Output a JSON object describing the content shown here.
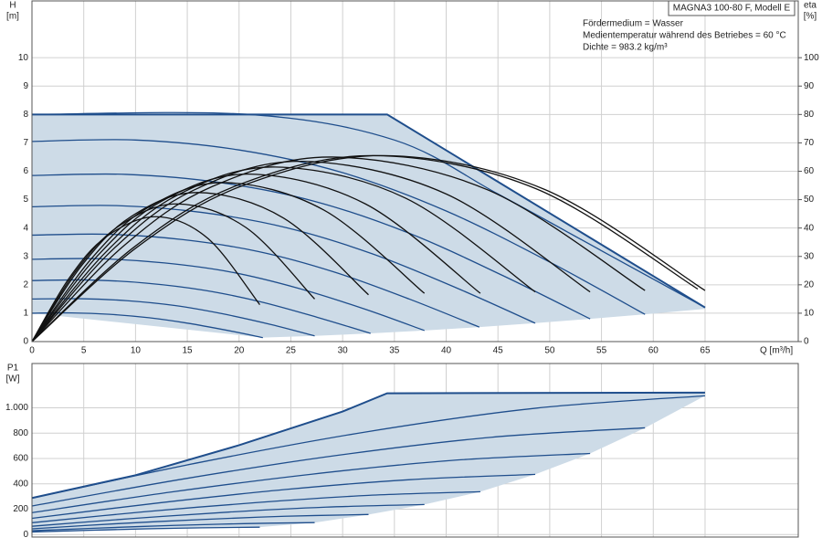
{
  "chart_data": [
    {
      "type": "line",
      "title": "MAGNA3 100-80 F, Modell E",
      "annotations": [
        "Fördermedium = Wasser",
        "Medientemperatur während des Betriebes = 60 °C",
        "Dichte = 983.2 kg/m³"
      ],
      "xlabel": "Q [m³/h]",
      "ylabel": "H",
      "yunit": "[m]",
      "y2label": "eta",
      "y2unit": "[%]",
      "xlim": [
        0,
        74
      ],
      "ylim": [
        0,
        12
      ],
      "y2lim": [
        0,
        120
      ],
      "xticks": [
        0,
        5,
        10,
        15,
        20,
        25,
        30,
        35,
        40,
        45,
        50,
        55,
        60,
        65
      ],
      "yticks": [
        0,
        1,
        2,
        3,
        4,
        5,
        6,
        7,
        8,
        9,
        10
      ],
      "y2ticks": [
        0,
        10,
        20,
        30,
        40,
        50,
        60,
        70,
        80,
        90,
        100
      ],
      "grid": true,
      "area": {
        "color": "#cddbe7",
        "x": [
          0,
          34.3,
          65,
          65,
          59.2,
          53.9,
          48.6,
          43.2,
          37.9,
          32.7,
          27.3,
          22.3,
          0
        ],
        "values": [
          8,
          8,
          1.2,
          1.15,
          0.96,
          0.8,
          0.65,
          0.51,
          0.39,
          0.29,
          0.2,
          0.14,
          1.0
        ]
      },
      "series": [
        {
          "color": "#1f4e8c",
          "line_width": 2,
          "x": [
            0,
            34.3,
            65
          ],
          "values": [
            8,
            8,
            1.2
          ]
        },
        {
          "color": "#1f4e8c",
          "x": [
            0,
            21,
            35,
            45,
            55,
            65
          ],
          "values": [
            8,
            8,
            7.1,
            5.2,
            3.2,
            1.2
          ]
        },
        {
          "color": "#1f4e8c",
          "x": [
            0,
            10,
            20,
            30,
            40,
            50,
            59.2
          ],
          "values": [
            7.05,
            7.1,
            6.75,
            5.95,
            4.6,
            2.8,
            0.96
          ]
        },
        {
          "color": "#1f4e8c",
          "x": [
            0,
            9.1,
            18.2,
            27.3,
            36.4,
            45.5,
            53.9
          ],
          "values": [
            5.85,
            5.89,
            5.6,
            4.94,
            3.82,
            2.32,
            0.8
          ]
        },
        {
          "color": "#1f4e8c",
          "x": [
            0,
            8.2,
            16.4,
            24.6,
            32.8,
            41.0,
            48.6
          ],
          "values": [
            4.75,
            4.79,
            4.55,
            4.01,
            3.1,
            1.89,
            0.65
          ]
        },
        {
          "color": "#1f4e8c",
          "x": [
            0,
            7.3,
            14.6,
            21.9,
            29.2,
            36.5,
            43.2
          ],
          "values": [
            3.75,
            3.78,
            3.59,
            3.17,
            2.45,
            1.49,
            0.51
          ]
        },
        {
          "color": "#1f4e8c",
          "x": [
            0,
            6.4,
            12.8,
            19.2,
            25.6,
            32.1,
            37.9
          ],
          "values": [
            2.9,
            2.92,
            2.77,
            2.45,
            1.89,
            1.15,
            0.39
          ]
        },
        {
          "color": "#1f4e8c",
          "x": [
            0,
            5.5,
            11.0,
            16.6,
            22.1,
            27.6,
            32.7
          ],
          "values": [
            2.15,
            2.17,
            2.06,
            1.81,
            1.4,
            0.85,
            0.29
          ]
        },
        {
          "color": "#1f4e8c",
          "x": [
            0,
            4.6,
            9.2,
            13.8,
            18.4,
            23.1,
            27.3
          ],
          "values": [
            1.5,
            1.51,
            1.44,
            1.27,
            0.98,
            0.6,
            0.2
          ]
        },
        {
          "color": "#1f4e8c",
          "x": [
            0,
            3.8,
            7.5,
            11.3,
            15.0,
            18.8,
            22.3
          ],
          "values": [
            1.0,
            1.01,
            0.96,
            0.84,
            0.65,
            0.4,
            0.14
          ]
        },
        {
          "color": "#111111",
          "axis": "y2",
          "x": [
            0,
            3.6,
            7.2,
            12,
            17,
            22
          ],
          "values": [
            0,
            22.4,
            37.0,
            44,
            36.3,
            13
          ]
        },
        {
          "color": "#111111",
          "axis": "y2",
          "x": [
            0,
            4.2,
            8.4,
            14,
            20.7,
            27.3
          ],
          "values": [
            0,
            24.7,
            40.7,
            48.5,
            40.1,
            15
          ]
        },
        {
          "color": "#111111",
          "axis": "y2",
          "x": [
            0,
            4.8,
            9.6,
            16,
            24.3,
            32.5
          ],
          "values": [
            0,
            26.8,
            44.1,
            52.5,
            43.5,
            16.5
          ]
        },
        {
          "color": "#111111",
          "axis": "y2",
          "x": [
            0,
            5.6,
            11.1,
            18.5,
            28.2,
            37.9
          ],
          "values": [
            0,
            28.6,
            47.0,
            56,
            46.3,
            17
          ]
        },
        {
          "color": "#111111",
          "axis": "y2",
          "x": [
            0,
            6.3,
            12.6,
            21,
            32.2,
            43.3
          ],
          "values": [
            0,
            30.1,
            49.6,
            59,
            48.5,
            17
          ]
        },
        {
          "color": "#111111",
          "axis": "y2",
          "x": [
            0,
            7.1,
            14.1,
            23.5,
            36.1,
            48.6
          ],
          "values": [
            0,
            31.4,
            51.7,
            61.5,
            50.5,
            17.5
          ]
        },
        {
          "color": "#111111",
          "axis": "y2",
          "x": [
            0,
            7.8,
            15.6,
            26,
            40,
            53.9
          ],
          "values": [
            0,
            32.4,
            53.3,
            63.5,
            52.0,
            17.5
          ]
        },
        {
          "color": "#111111",
          "axis": "y2",
          "x": [
            0,
            8.7,
            17.4,
            29,
            44.1,
            59.2
          ],
          "values": [
            0,
            33.2,
            54.6,
            65,
            53.3,
            18
          ]
        },
        {
          "color": "#111111",
          "axis": "y2",
          "x": [
            0,
            9.9,
            19.8,
            33,
            48.7,
            64.3
          ],
          "values": [
            0,
            33.4,
            55.0,
            65.5,
            53.8,
            18.5
          ]
        },
        {
          "color": "#111111",
          "axis": "y2",
          "x": [
            0,
            10.2,
            20.4,
            34,
            49.5,
            65
          ],
          "values": [
            0,
            33.4,
            55.0,
            65.5,
            53.6,
            18
          ]
        }
      ]
    },
    {
      "type": "line",
      "ylabel": "P1",
      "yunit": "[W]",
      "xlim": [
        0,
        74
      ],
      "ylim": [
        -20,
        1350
      ],
      "yticks": [
        0,
        200,
        400,
        600,
        800,
        {
          "value": 1000,
          "label": "1.000"
        }
      ],
      "grid": true,
      "area": {
        "color": "#cddbe7",
        "x": [
          0,
          10,
          20,
          30,
          34.3,
          65,
          65,
          59.2,
          53.9,
          48.6,
          43.3,
          37.9,
          32.5,
          27.3,
          22,
          0
        ],
        "values": [
          288,
          468,
          705,
          971,
          1115,
          1120,
          1095,
          842,
          640,
          475,
          338,
          237,
          158,
          94,
          58,
          20
        ]
      },
      "series": [
        {
          "color": "#1f4e8c",
          "line_width": 2,
          "x": [
            0,
            10,
            20,
            30,
            34.3,
            65
          ],
          "values": [
            288,
            468,
            705,
            971,
            1115,
            1120
          ]
        },
        {
          "color": "#1f4e8c",
          "x": [
            0,
            16.25,
            32.5,
            48.75,
            65
          ],
          "values": [
            288,
            570,
            813,
            998,
            1095
          ]
        },
        {
          "color": "#1f4e8c",
          "x": [
            0,
            14.8,
            29.6,
            44.4,
            59.2
          ],
          "values": [
            225,
            441,
            626,
            768,
            842
          ]
        },
        {
          "color": "#1f4e8c",
          "x": [
            0,
            13.5,
            27,
            40.4,
            53.9
          ],
          "values": [
            172,
            336,
            476,
            584,
            640
          ]
        },
        {
          "color": "#1f4e8c",
          "x": [
            0,
            12.2,
            24.3,
            36.5,
            48.6
          ],
          "values": [
            128,
            249,
            354,
            433,
            475
          ]
        },
        {
          "color": "#1f4e8c",
          "x": [
            0,
            10.8,
            21.7,
            32.5,
            43.3
          ],
          "values": [
            93,
            179,
            252,
            309,
            338
          ]
        },
        {
          "color": "#1f4e8c",
          "x": [
            0,
            9.5,
            19,
            28.4,
            37.9
          ],
          "values": [
            65,
            125,
            177,
            216,
            237
          ]
        },
        {
          "color": "#1f4e8c",
          "x": [
            0,
            8.1,
            16.3,
            24.4,
            32.5
          ],
          "values": [
            45,
            85,
            118,
            144,
            158
          ]
        },
        {
          "color": "#1f4e8c",
          "x": [
            0,
            6.8,
            13.7,
            20.5,
            27.3
          ],
          "values": [
            30,
            52,
            72,
            86,
            94
          ]
        },
        {
          "color": "#1f4e8c",
          "x": [
            0,
            5.5,
            11,
            16.5,
            22
          ],
          "values": [
            20,
            33,
            45,
            53,
            58
          ]
        }
      ]
    }
  ]
}
